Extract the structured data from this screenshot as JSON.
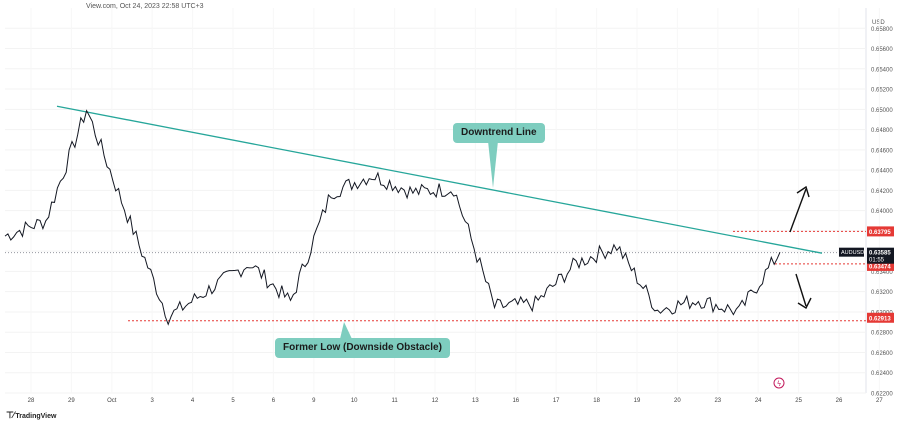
{
  "caption": "View.com, Oct 24, 2023 22:58 UTC+3",
  "currency": "USD",
  "branding": "TradingView",
  "colors": {
    "price": "#131722",
    "trend": "#26a69a",
    "support": "#e53935",
    "callout_bg": "#7ecdbf",
    "price_badge": "#131722",
    "red_badge": "#e53935"
  },
  "annotations": {
    "downtrend_label": "Downtrend Line",
    "former_low_label": "Former Low (Downside Obstacle)"
  },
  "chart_data": {
    "type": "line",
    "series": [
      {
        "name": "AUDUSD",
        "x": [
          "Sep 27",
          "Sep 28",
          "Sep 29",
          "Oct 2",
          "Oct 3",
          "Oct 4",
          "Oct 5",
          "Oct 6",
          "Oct 9",
          "Oct 10",
          "Oct 11",
          "Oct 12",
          "Oct 13",
          "Oct 16",
          "Oct 17",
          "Oct 18",
          "Oct 19",
          "Oct 20",
          "Oct 23",
          "Oct 24"
        ],
        "values": [
          0.6375,
          0.639,
          0.65,
          0.6395,
          0.6295,
          0.6322,
          0.6348,
          0.631,
          0.6418,
          0.6435,
          0.6418,
          0.6422,
          0.6305,
          0.6308,
          0.6348,
          0.6365,
          0.6302,
          0.6312,
          0.63,
          0.6359
        ]
      }
    ],
    "price_labels": {
      "last": "0.63585",
      "countdown": "01:55",
      "symbol": "AUDUSD",
      "upper_level": "0.63795",
      "lower_level": "0.63474",
      "support_level": "0.62913"
    },
    "levels": {
      "upper": 0.63795,
      "lower": 0.63474,
      "support": 0.62913,
      "last": 0.63585
    },
    "trend_line": {
      "start": [
        "Sep 28",
        0.6503
      ],
      "end": [
        "Oct 25",
        0.6358
      ]
    },
    "x_tick_labels": [
      "28",
      "29",
      "Oct",
      "3",
      "4",
      "5",
      "6",
      "9",
      "10",
      "11",
      "12",
      "13",
      "16",
      "17",
      "18",
      "19",
      "20",
      "23",
      "24",
      "25",
      "26",
      "27"
    ],
    "y_ticks": [
      "0.65800",
      "0.65600",
      "0.65400",
      "0.65200",
      "0.65000",
      "0.64800",
      "0.64600",
      "0.64400",
      "0.64200",
      "0.64000",
      "0.63800",
      "0.63600",
      "0.63400",
      "0.63200",
      "0.63000",
      "0.62800",
      "0.62600",
      "0.62400",
      "0.62200"
    ],
    "y_range": [
      0.622,
      0.66
    ],
    "grid": true,
    "legend": "none"
  }
}
